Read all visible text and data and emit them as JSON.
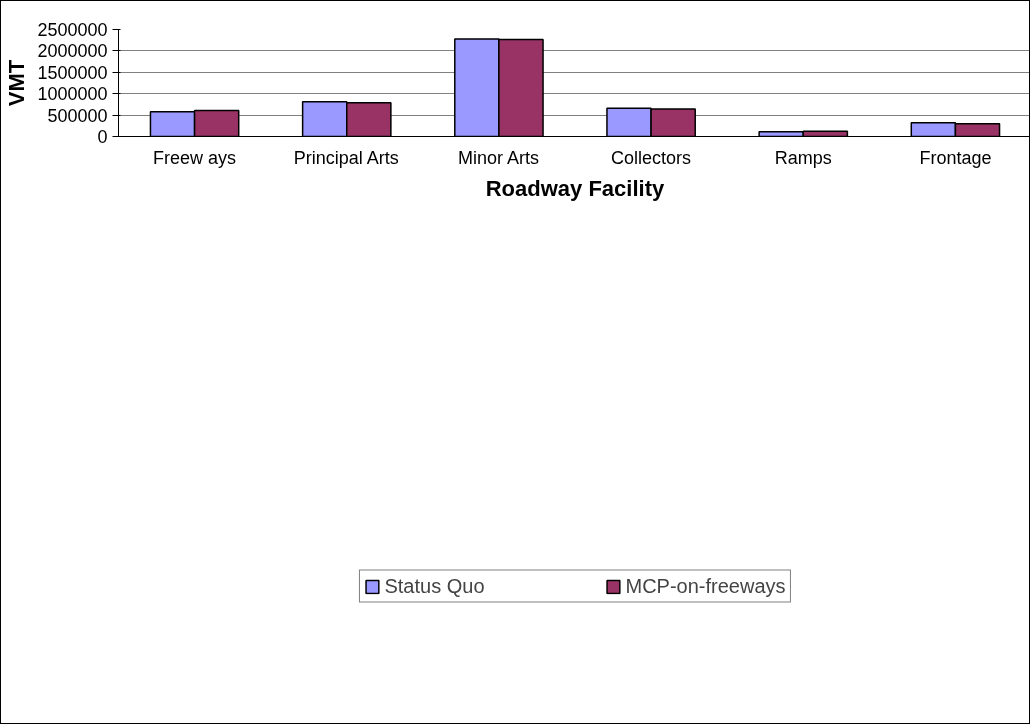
{
  "chart_data": {
    "type": "bar",
    "xlabel": "Roadway Facility",
    "ylabel": "VMT",
    "categories": [
      "Freew ays",
      "Principal Arts",
      "Minor Arts",
      "Collectors",
      "Ramps",
      "Frontage"
    ],
    "series": [
      {
        "name": "Status Quo",
        "color": "#9999ff",
        "values": [
          580000,
          810000,
          2280000,
          660000,
          110000,
          320000
        ]
      },
      {
        "name": "MCP-on-freeways",
        "color": "#993366",
        "values": [
          605000,
          790000,
          2265000,
          645000,
          125000,
          300000
        ]
      }
    ],
    "ylim": [
      0,
      2500000
    ],
    "yticks": [
      0,
      500000,
      1000000,
      1500000,
      2000000,
      2500000
    ],
    "grid": "y",
    "legend": "bottom"
  }
}
